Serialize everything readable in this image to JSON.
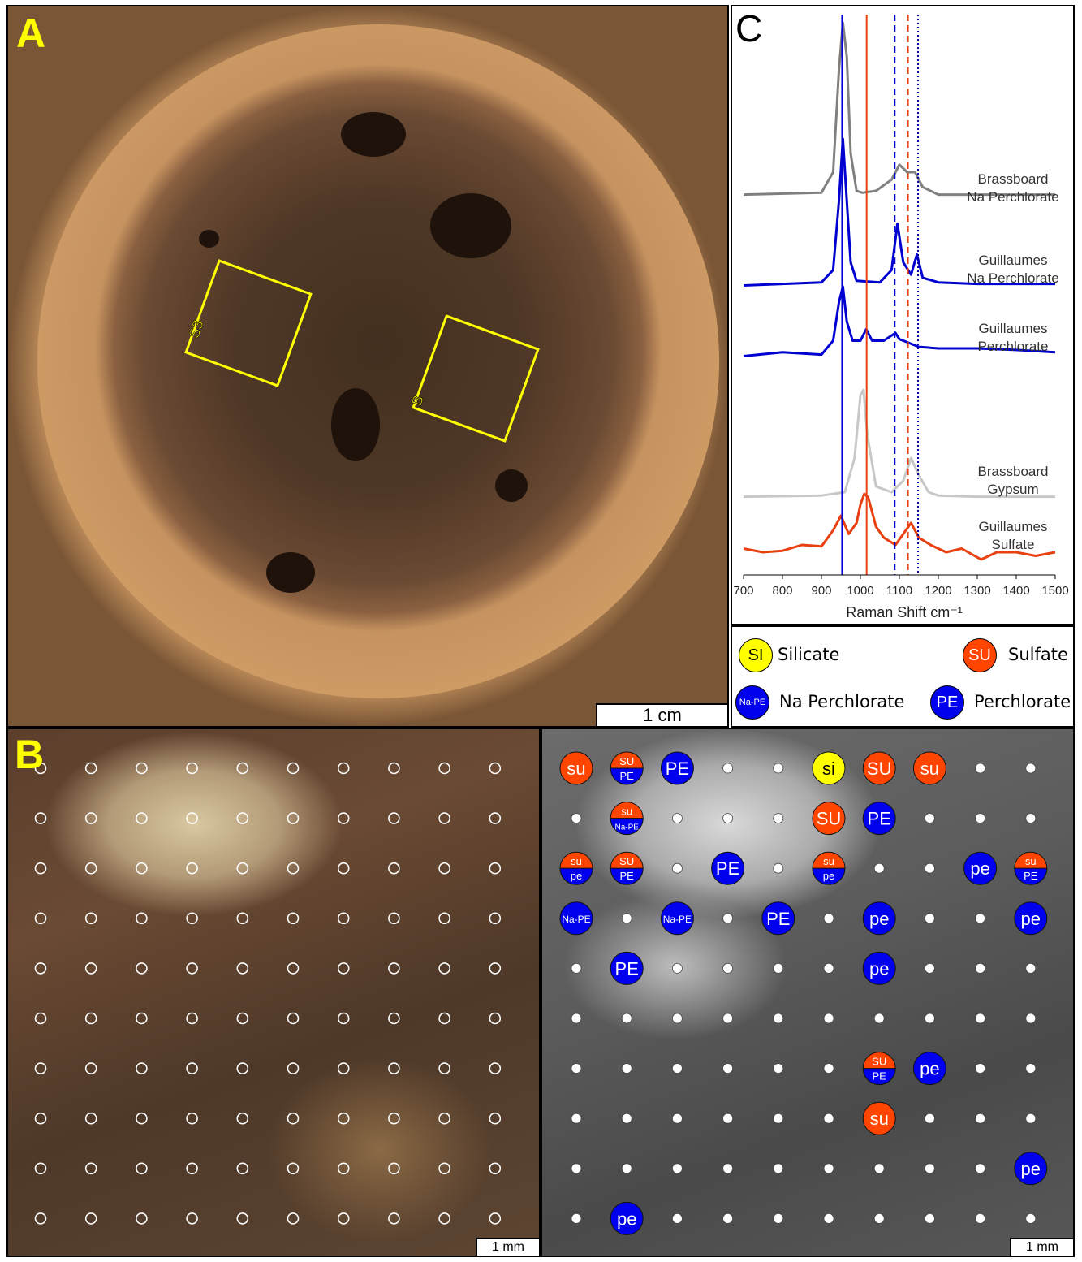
{
  "panel_a": {
    "label": "A",
    "box_labels": [
      "S3",
      "B"
    ],
    "scale_bar": "1 cm"
  },
  "panel_b": {
    "label": "B",
    "scale_bar_left": "1 mm",
    "scale_bar_right": "1 mm"
  },
  "panel_c": {
    "label": "C"
  },
  "chart_data": {
    "type": "line",
    "xlabel": "Raman Shift cm⁻¹",
    "ylabel": "",
    "xlim": [
      700,
      1500
    ],
    "x_ticks": [
      "700",
      "800",
      "900",
      "1000",
      "1100",
      "1200",
      "1300",
      "1400",
      "1500"
    ],
    "grid": false,
    "series": [
      {
        "name": "Brassboard Na Perchlorate",
        "color": "#808080",
        "x": [
          700,
          900,
          930,
          945,
          955,
          965,
          975,
          990,
          1005,
          1040,
          1080,
          1100,
          1120,
          1140,
          1160,
          1200,
          1300,
          1500
        ],
        "y": [
          0.08,
          0.09,
          0.2,
          0.75,
          1.0,
          0.82,
          0.3,
          0.1,
          0.09,
          0.1,
          0.16,
          0.24,
          0.2,
          0.2,
          0.12,
          0.08,
          0.08,
          0.08
        ]
      },
      {
        "name": "Guillaumes Na Perchlorate",
        "color": "#0000d0",
        "x": [
          700,
          800,
          900,
          930,
          945,
          955,
          965,
          975,
          990,
          1050,
          1080,
          1095,
          1110,
          1130,
          1145,
          1160,
          1200,
          1300,
          1400,
          1500
        ],
        "y": [
          0.05,
          0.06,
          0.07,
          0.15,
          0.6,
          1.0,
          0.6,
          0.2,
          0.08,
          0.07,
          0.15,
          0.45,
          0.2,
          0.12,
          0.25,
          0.1,
          0.07,
          0.06,
          0.06,
          0.06
        ]
      },
      {
        "name": "Guillaumes Perchlorate",
        "color": "#0000d0",
        "x": [
          700,
          800,
          900,
          930,
          945,
          955,
          965,
          980,
          1000,
          1015,
          1030,
          1060,
          1090,
          1100,
          1120,
          1150,
          1200,
          1300,
          1400,
          1500
        ],
        "y": [
          0.1,
          0.15,
          0.12,
          0.3,
          0.8,
          1.0,
          0.55,
          0.3,
          0.3,
          0.45,
          0.3,
          0.3,
          0.4,
          0.32,
          0.28,
          0.22,
          0.2,
          0.2,
          0.18,
          0.15
        ]
      },
      {
        "name": "Brassboard Gypsum",
        "color": "#c8c8c8",
        "x": [
          700,
          900,
          960,
          985,
          1000,
          1008,
          1018,
          1040,
          1080,
          1110,
          1130,
          1150,
          1175,
          1200,
          1300,
          1500
        ],
        "y": [
          0.06,
          0.07,
          0.1,
          0.4,
          0.95,
          1.0,
          0.6,
          0.15,
          0.1,
          0.2,
          0.4,
          0.25,
          0.1,
          0.07,
          0.06,
          0.06
        ]
      },
      {
        "name": "Guillaumes Sulfate",
        "color": "#e84010",
        "x": [
          700,
          750,
          800,
          850,
          900,
          930,
          950,
          970,
          990,
          1000,
          1010,
          1020,
          1040,
          1060,
          1090,
          1110,
          1130,
          1150,
          1180,
          1220,
          1260,
          1310,
          1350,
          1400,
          1450,
          1500
        ],
        "y": [
          0.25,
          0.2,
          0.22,
          0.3,
          0.28,
          0.5,
          0.7,
          0.45,
          0.6,
          0.85,
          1.0,
          0.95,
          0.55,
          0.4,
          0.3,
          0.45,
          0.6,
          0.4,
          0.3,
          0.2,
          0.25,
          0.1,
          0.2,
          0.2,
          0.15,
          0.2
        ]
      }
    ],
    "reference_lines": [
      {
        "x": 953,
        "style": "solid",
        "color": "#0000d0"
      },
      {
        "x": 1016,
        "style": "solid",
        "color": "#e84010"
      },
      {
        "x": 1088,
        "style": "dashed",
        "color": "#0000d0"
      },
      {
        "x": 1122,
        "style": "dashed",
        "color": "#e84010"
      },
      {
        "x": 1148,
        "style": "dotted",
        "color": "#0000a0"
      }
    ]
  },
  "legend": [
    {
      "badge": "SI",
      "label": "Silicate",
      "color": "#ffff00",
      "text_color": "#000000"
    },
    {
      "badge": "SU",
      "label": "Sulfate",
      "color": "#ff4500",
      "text_color": "#ffffff"
    },
    {
      "badge": "Na-PE",
      "label": "Na Perchlorate",
      "color": "#0000ee",
      "text_color": "#ffffff"
    },
    {
      "badge": "PE",
      "label": "Perchlorate",
      "color": "#0000ee",
      "text_color": "#ffffff"
    }
  ],
  "grid_map": {
    "rows": 10,
    "cols": 10,
    "markers": [
      {
        "row": 0,
        "col": 0,
        "type": "single",
        "text": "su",
        "color": "#ff4500"
      },
      {
        "row": 0,
        "col": 1,
        "type": "split",
        "top": "SU",
        "bottom": "PE"
      },
      {
        "row": 0,
        "col": 2,
        "type": "single",
        "text": "PE",
        "color": "#0000ee"
      },
      {
        "row": 0,
        "col": 5,
        "type": "single",
        "text": "si",
        "color": "#ffff00"
      },
      {
        "row": 0,
        "col": 6,
        "type": "single",
        "text": "SU",
        "color": "#ff4500"
      },
      {
        "row": 0,
        "col": 7,
        "type": "single",
        "text": "su",
        "color": "#ff4500"
      },
      {
        "row": 1,
        "col": 1,
        "type": "split",
        "top": "su",
        "bottom": "Na-PE"
      },
      {
        "row": 1,
        "col": 5,
        "type": "single",
        "text": "SU",
        "color": "#ff4500"
      },
      {
        "row": 1,
        "col": 6,
        "type": "single",
        "text": "PE",
        "color": "#0000ee"
      },
      {
        "row": 2,
        "col": 0,
        "type": "split",
        "top": "su",
        "bottom": "pe"
      },
      {
        "row": 2,
        "col": 1,
        "type": "split",
        "top": "SU",
        "bottom": "PE"
      },
      {
        "row": 2,
        "col": 3,
        "type": "single",
        "text": "PE",
        "color": "#0000ee"
      },
      {
        "row": 2,
        "col": 5,
        "type": "split",
        "top": "su",
        "bottom": "pe"
      },
      {
        "row": 2,
        "col": 8,
        "type": "single",
        "text": "pe",
        "color": "#0000ee"
      },
      {
        "row": 2,
        "col": 9,
        "type": "split",
        "top": "su",
        "bottom": "PE"
      },
      {
        "row": 3,
        "col": 0,
        "type": "single",
        "text": "Na-PE",
        "color": "#0000ee"
      },
      {
        "row": 3,
        "col": 2,
        "type": "single",
        "text": "Na-PE",
        "color": "#0000ee"
      },
      {
        "row": 3,
        "col": 4,
        "type": "single",
        "text": "PE",
        "color": "#0000ee"
      },
      {
        "row": 3,
        "col": 6,
        "type": "single",
        "text": "pe",
        "color": "#0000ee"
      },
      {
        "row": 3,
        "col": 9,
        "type": "single",
        "text": "pe",
        "color": "#0000ee"
      },
      {
        "row": 4,
        "col": 1,
        "type": "single",
        "text": "PE",
        "color": "#0000ee"
      },
      {
        "row": 4,
        "col": 6,
        "type": "single",
        "text": "pe",
        "color": "#0000ee"
      },
      {
        "row": 6,
        "col": 6,
        "type": "split",
        "top": "SU",
        "bottom": "PE"
      },
      {
        "row": 6,
        "col": 7,
        "type": "single",
        "text": "pe",
        "color": "#0000ee"
      },
      {
        "row": 7,
        "col": 6,
        "type": "single",
        "text": "su",
        "color": "#ff4500"
      },
      {
        "row": 8,
        "col": 9,
        "type": "single",
        "text": "pe",
        "color": "#0000ee"
      },
      {
        "row": 9,
        "col": 1,
        "type": "single",
        "text": "pe",
        "color": "#0000ee"
      }
    ]
  }
}
